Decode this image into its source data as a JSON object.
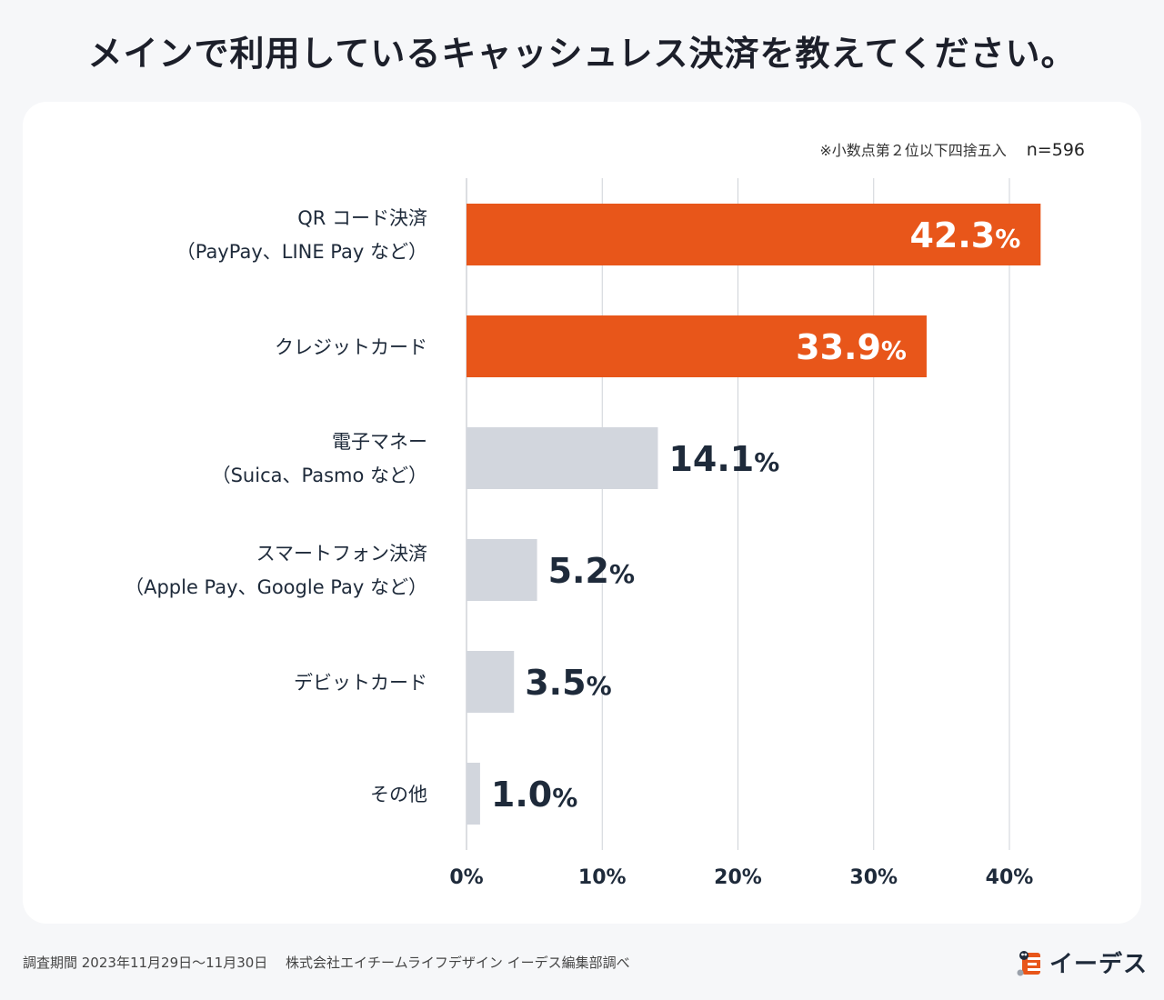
{
  "title": "メインで利用しているキャッシュレス決済を教えてください。",
  "note": {
    "rounding": "※小数点第２位以下四捨五入",
    "n": "n=596"
  },
  "chart_data": {
    "type": "bar",
    "orientation": "horizontal",
    "title": "メインで利用しているキャッシュレス決済を教えてください。",
    "xlabel": "",
    "ylabel": "",
    "xlim": [
      0,
      40
    ],
    "xticks": [
      0,
      10,
      20,
      30,
      40
    ],
    "tick_labels": [
      "0%",
      "10%",
      "20%",
      "30%",
      "40%"
    ],
    "grid": true,
    "categories": [
      [
        "QR コード決済",
        "（PayPay、LINE Pay など）"
      ],
      [
        "クレジットカード"
      ],
      [
        "電子マネー",
        "（Suica、Pasmo など）"
      ],
      [
        "スマートフォン決済",
        "（Apple Pay、Google Pay など）"
      ],
      [
        "デビットカード"
      ],
      [
        "その他"
      ]
    ],
    "values": [
      42.3,
      33.9,
      14.1,
      5.2,
      3.5,
      1.0
    ],
    "value_labels": [
      "42.3",
      "33.9",
      "14.1",
      "5.2",
      "3.5",
      "1.0"
    ],
    "unit": "%",
    "highlight": [
      true,
      true,
      false,
      false,
      false,
      false
    ],
    "colors": {
      "highlight": "#e8561a",
      "normal": "#d2d6dd",
      "grid": "#cfd3d8",
      "text": "#1e2a3a"
    }
  },
  "footer": "調査期間 2023年11月29日〜11月30日　 株式会社エイチームライフデザイン イーデス編集部調べ",
  "logo": {
    "text": "イーデス",
    "icon": "edeith-logo-icon",
    "color": "#e8561a"
  }
}
